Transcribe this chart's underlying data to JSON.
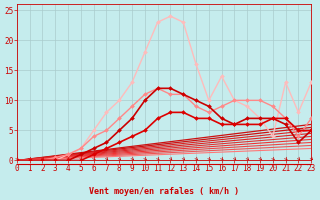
{
  "xlabel": "Vent moyen/en rafales ( km/h )",
  "xlim": [
    0,
    23
  ],
  "ylim": [
    0,
    26
  ],
  "yticks": [
    0,
    5,
    10,
    15,
    20,
    25
  ],
  "xticks": [
    0,
    1,
    2,
    3,
    4,
    5,
    6,
    7,
    8,
    9,
    10,
    11,
    12,
    13,
    14,
    15,
    16,
    17,
    18,
    19,
    20,
    21,
    22,
    23
  ],
  "background_color": "#c5eced",
  "grid_color": "#aacccc",
  "series": [
    {
      "x": [
        0,
        1,
        2,
        3,
        4,
        5,
        6,
        7,
        8,
        9,
        10,
        11,
        12,
        13,
        14,
        15,
        16,
        17,
        18,
        19,
        20,
        21,
        22,
        23
      ],
      "y": [
        0,
        0,
        0,
        0,
        1,
        2,
        5,
        8,
        10,
        13,
        18,
        23,
        24,
        23,
        16,
        10,
        14,
        10,
        9,
        7,
        4,
        13,
        8,
        13
      ],
      "color": "#ffbbbb",
      "lw": 1.0,
      "marker": "D",
      "ms": 2.0,
      "alpha": 1.0,
      "zorder": 4
    },
    {
      "x": [
        0,
        1,
        2,
        3,
        4,
        5,
        6,
        7,
        8,
        9,
        10,
        11,
        12,
        13,
        14,
        15,
        16,
        17,
        18,
        19,
        20,
        21,
        22,
        23
      ],
      "y": [
        0,
        0,
        0,
        0.5,
        1,
        2,
        4,
        5,
        7,
        9,
        11,
        12,
        11,
        11,
        9,
        8,
        9,
        10,
        10,
        10,
        9,
        7,
        4,
        7
      ],
      "color": "#ff8888",
      "lw": 1.0,
      "marker": "D",
      "ms": 2.0,
      "alpha": 1.0,
      "zorder": 5
    },
    {
      "x": [
        0,
        1,
        2,
        3,
        4,
        5,
        6,
        7,
        8,
        9,
        10,
        11,
        12,
        13,
        14,
        15,
        16,
        17,
        18,
        19,
        20,
        21,
        22,
        23
      ],
      "y": [
        0,
        0,
        0,
        0,
        0,
        1,
        2,
        3,
        5,
        7,
        10,
        12,
        12,
        11,
        10,
        9,
        7,
        6,
        7,
        7,
        7,
        6,
        3,
        5
      ],
      "color": "#cc0000",
      "lw": 1.2,
      "marker": "D",
      "ms": 2.0,
      "alpha": 1.0,
      "zorder": 6
    },
    {
      "x": [
        0,
        1,
        2,
        3,
        4,
        5,
        6,
        7,
        8,
        9,
        10,
        11,
        12,
        13,
        14,
        15,
        16,
        17,
        18,
        19,
        20,
        21,
        22,
        23
      ],
      "y": [
        0,
        0,
        0,
        0,
        0,
        0,
        1,
        2,
        3,
        4,
        5,
        7,
        8,
        8,
        7,
        7,
        6,
        6,
        6,
        6,
        7,
        7,
        5,
        5
      ],
      "color": "#dd0000",
      "lw": 1.2,
      "marker": "D",
      "ms": 2.0,
      "alpha": 1.0,
      "zorder": 6
    },
    {
      "x": [
        0,
        23
      ],
      "y": [
        0,
        6.0
      ],
      "color": "#cc1111",
      "lw": 0.9,
      "marker": null,
      "ms": 0,
      "alpha": 1.0,
      "zorder": 3
    },
    {
      "x": [
        0,
        23
      ],
      "y": [
        0,
        5.5
      ],
      "color": "#cc1111",
      "lw": 0.9,
      "marker": null,
      "ms": 0,
      "alpha": 1.0,
      "zorder": 3
    },
    {
      "x": [
        0,
        23
      ],
      "y": [
        0,
        5.0
      ],
      "color": "#dd2222",
      "lw": 0.8,
      "marker": null,
      "ms": 0,
      "alpha": 1.0,
      "zorder": 3
    },
    {
      "x": [
        0,
        23
      ],
      "y": [
        0,
        4.5
      ],
      "color": "#dd2222",
      "lw": 0.8,
      "marker": null,
      "ms": 0,
      "alpha": 1.0,
      "zorder": 3
    },
    {
      "x": [
        0,
        23
      ],
      "y": [
        0,
        4.0
      ],
      "color": "#dd3333",
      "lw": 0.8,
      "marker": null,
      "ms": 0,
      "alpha": 1.0,
      "zorder": 3
    },
    {
      "x": [
        0,
        23
      ],
      "y": [
        0,
        3.5
      ],
      "color": "#ee3333",
      "lw": 0.8,
      "marker": null,
      "ms": 0,
      "alpha": 1.0,
      "zorder": 3
    },
    {
      "x": [
        0,
        23
      ],
      "y": [
        0,
        3.0
      ],
      "color": "#ee4444",
      "lw": 0.8,
      "marker": null,
      "ms": 0,
      "alpha": 1.0,
      "zorder": 3
    },
    {
      "x": [
        0,
        23
      ],
      "y": [
        0,
        2.5
      ],
      "color": "#ee5555",
      "lw": 0.8,
      "marker": null,
      "ms": 0,
      "alpha": 1.0,
      "zorder": 3
    },
    {
      "x": [
        0,
        23
      ],
      "y": [
        0,
        2.0
      ],
      "color": "#ff7777",
      "lw": 0.8,
      "marker": null,
      "ms": 0,
      "alpha": 1.0,
      "zorder": 3
    }
  ],
  "wind_arrow_color": "#cc0000",
  "xlabel_color": "#cc0000",
  "xlabel_fontsize": 6.0,
  "tick_color": "#cc0000",
  "tick_fontsize": 5.5,
  "figsize": [
    3.2,
    2.0
  ],
  "dpi": 100
}
